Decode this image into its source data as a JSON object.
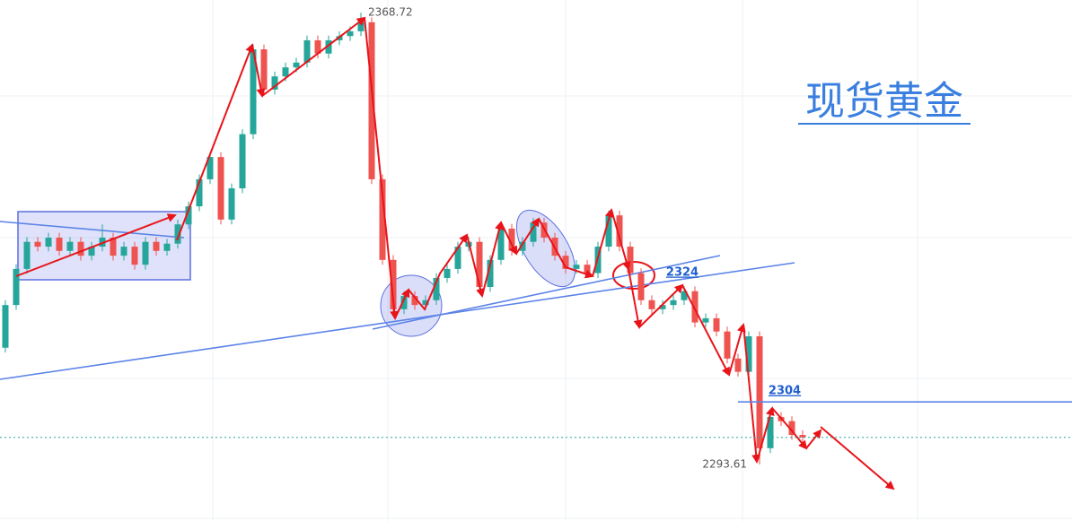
{
  "chart_data": {
    "type": "candlestick",
    "title": "现货黄金",
    "ylim": [
      2284.2,
      2370.8
    ],
    "up_color": "#26a69a",
    "down_color": "#ef5350",
    "high_label": 2368.72,
    "low_label": 2293.61,
    "levels": [
      2324,
      2304
    ],
    "last_price": 2298.1,
    "candles": [
      [
        2313.0,
        2320.9,
        2312.2,
        2320.1
      ],
      [
        2320.1,
        2326.9,
        2319.3,
        2326.1
      ],
      [
        2326.1,
        2331.4,
        2325.3,
        2330.6
      ],
      [
        2330.6,
        2331.4,
        2329.0,
        2329.8
      ],
      [
        2329.8,
        2332.1,
        2329.0,
        2331.3
      ],
      [
        2331.3,
        2332.1,
        2328.3,
        2329.1
      ],
      [
        2329.1,
        2331.4,
        2328.3,
        2330.6
      ],
      [
        2330.6,
        2331.4,
        2327.5,
        2328.3
      ],
      [
        2328.3,
        2330.6,
        2327.5,
        2329.8
      ],
      [
        2329.8,
        2333.5,
        2329.0,
        2331.3
      ],
      [
        2331.3,
        2332.1,
        2327.5,
        2328.3
      ],
      [
        2328.3,
        2330.6,
        2327.5,
        2329.8
      ],
      [
        2329.8,
        2330.6,
        2326.0,
        2326.8
      ],
      [
        2326.8,
        2331.4,
        2326.0,
        2330.6
      ],
      [
        2330.6,
        2331.4,
        2328.3,
        2329.1
      ],
      [
        2329.1,
        2331.1,
        2328.3,
        2330.3
      ],
      [
        2330.3,
        2334.3,
        2329.5,
        2333.5
      ],
      [
        2333.5,
        2337.3,
        2332.7,
        2336.5
      ],
      [
        2336.5,
        2341.8,
        2335.7,
        2341.0
      ],
      [
        2341.0,
        2345.5,
        2340.2,
        2344.7
      ],
      [
        2344.7,
        2345.5,
        2333.5,
        2334.3
      ],
      [
        2334.3,
        2340.3,
        2333.5,
        2339.5
      ],
      [
        2339.5,
        2349.3,
        2338.7,
        2348.5
      ],
      [
        2348.5,
        2363.4,
        2347.7,
        2362.6
      ],
      [
        2362.6,
        2363.4,
        2355.1,
        2355.9
      ],
      [
        2355.9,
        2358.9,
        2355.1,
        2358.1
      ],
      [
        2358.1,
        2360.4,
        2357.3,
        2359.6
      ],
      [
        2359.6,
        2361.2,
        2358.8,
        2360.4
      ],
      [
        2360.4,
        2364.9,
        2359.6,
        2364.1
      ],
      [
        2364.1,
        2364.9,
        2361.1,
        2361.9
      ],
      [
        2361.9,
        2364.9,
        2361.1,
        2364.1
      ],
      [
        2364.1,
        2365.6,
        2363.3,
        2364.8
      ],
      [
        2364.8,
        2366.4,
        2364.0,
        2365.6
      ],
      [
        2365.6,
        2368.72,
        2364.8,
        2367.1
      ],
      [
        2367.1,
        2367.9,
        2340.2,
        2341.0
      ],
      [
        2341.0,
        2341.8,
        2326.8,
        2327.6
      ],
      [
        2327.6,
        2328.4,
        2318.6,
        2319.4
      ],
      [
        2319.4,
        2322.4,
        2318.6,
        2321.6
      ],
      [
        2321.6,
        2322.4,
        2319.3,
        2320.1
      ],
      [
        2320.1,
        2321.7,
        2319.3,
        2320.9
      ],
      [
        2320.9,
        2325.4,
        2320.1,
        2324.6
      ],
      [
        2324.6,
        2326.9,
        2323.8,
        2326.1
      ],
      [
        2326.1,
        2330.6,
        2325.3,
        2329.8
      ],
      [
        2329.8,
        2331.4,
        2329.0,
        2330.6
      ],
      [
        2330.6,
        2331.4,
        2322.3,
        2323.1
      ],
      [
        2323.1,
        2328.4,
        2322.3,
        2327.6
      ],
      [
        2327.6,
        2333.6,
        2326.8,
        2332.8
      ],
      [
        2332.8,
        2333.6,
        2328.3,
        2329.1
      ],
      [
        2329.1,
        2331.4,
        2328.3,
        2330.6
      ],
      [
        2330.6,
        2334.6,
        2329.8,
        2333.8
      ],
      [
        2333.8,
        2334.6,
        2330.5,
        2331.3
      ],
      [
        2331.3,
        2332.1,
        2327.5,
        2328.3
      ],
      [
        2328.3,
        2329.1,
        2325.3,
        2326.1
      ],
      [
        2326.1,
        2327.6,
        2325.3,
        2326.8
      ],
      [
        2326.8,
        2327.6,
        2324.6,
        2325.4
      ],
      [
        2325.4,
        2330.6,
        2324.6,
        2329.8
      ],
      [
        2329.8,
        2335.8,
        2329.0,
        2335.0
      ],
      [
        2335.0,
        2335.8,
        2329.0,
        2329.8
      ],
      [
        2329.8,
        2330.6,
        2324.6,
        2325.4
      ],
      [
        2325.4,
        2326.2,
        2320.1,
        2320.9
      ],
      [
        2320.9,
        2321.7,
        2318.6,
        2319.4
      ],
      [
        2319.4,
        2320.9,
        2318.6,
        2320.1
      ],
      [
        2320.1,
        2321.7,
        2319.3,
        2320.9
      ],
      [
        2320.9,
        2323.2,
        2320.1,
        2322.4
      ],
      [
        2322.4,
        2323.2,
        2316.4,
        2317.2
      ],
      [
        2317.2,
        2318.7,
        2316.4,
        2317.9
      ],
      [
        2317.9,
        2318.7,
        2314.9,
        2315.7
      ],
      [
        2315.7,
        2316.5,
        2310.4,
        2311.2
      ],
      [
        2311.2,
        2312.0,
        2308.2,
        2309.0
      ],
      [
        2309.0,
        2315.7,
        2308.2,
        2314.9
      ],
      [
        2314.9,
        2315.7,
        2293.61,
        2296.3
      ],
      [
        2296.3,
        2302.3,
        2295.5,
        2301.5
      ],
      [
        2301.5,
        2302.3,
        2300.0,
        2300.8
      ],
      [
        2300.8,
        2301.6,
        2297.7,
        2298.5
      ],
      [
        2298.5,
        2299.3,
        2297.3,
        2298.1
      ]
    ]
  }
}
